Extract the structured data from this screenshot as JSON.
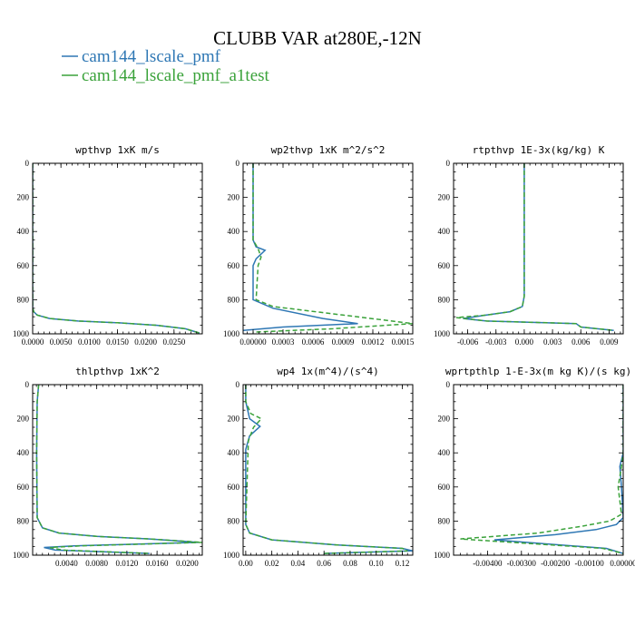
{
  "figure": {
    "title": "CLUBB VAR at280E,-12N"
  },
  "colors": {
    "series1": "#2e77b4",
    "series2": "#3aa23a"
  },
  "legend": [
    {
      "label": "cam144_lscale_pmf",
      "color": "#2e77b4",
      "dash": "solid"
    },
    {
      "label": "cam144_lscale_pmf_a1test",
      "color": "#3aa23a",
      "dash": "dashed"
    }
  ],
  "chart_data": [
    {
      "type": "line",
      "title": "wpthvp  1xK m/s",
      "xlim": [
        0,
        0.03
      ],
      "ylim": [
        0,
        1000
      ],
      "y_inverted": true,
      "xticks": [
        "0.0000",
        "0.0050",
        "0.0100",
        "0.0150",
        "0.0200",
        "0.0250"
      ],
      "xtick_values": [
        0,
        0.005,
        0.01,
        0.015,
        0.02,
        0.025
      ],
      "yticks": [
        "0",
        "200",
        "400",
        "600",
        "800",
        "1000"
      ],
      "ytick_values": [
        0,
        200,
        400,
        600,
        800,
        1000
      ],
      "series": [
        {
          "x": [
            0,
            0,
            0,
            0.0002,
            0.0008,
            0.003,
            0.008,
            0.015,
            0.022,
            0.027,
            0.0295
          ],
          "y": [
            0,
            400,
            850,
            870,
            890,
            910,
            925,
            935,
            950,
            970,
            995
          ]
        },
        {
          "x": [
            0,
            0,
            0,
            0.0002,
            0.0008,
            0.003,
            0.008,
            0.015,
            0.022,
            0.027,
            0.0295
          ],
          "y": [
            0,
            400,
            850,
            870,
            890,
            910,
            925,
            935,
            950,
            970,
            995
          ]
        }
      ]
    },
    {
      "type": "line",
      "title": "wp2thvp  1xK m^2/s^2",
      "xlim": [
        -0.0001,
        0.0016
      ],
      "ylim": [
        0,
        1000
      ],
      "y_inverted": true,
      "xticks": [
        "0.00000",
        "0.0003",
        "0.0006",
        "0.0009",
        "0.0012",
        "0.0015"
      ],
      "xtick_values": [
        0,
        0.0003,
        0.0006,
        0.0009,
        0.0012,
        0.0015
      ],
      "yticks": [
        "0",
        "200",
        "400",
        "600",
        "800",
        "1000"
      ],
      "ytick_values": [
        0,
        200,
        400,
        600,
        800,
        1000
      ],
      "series": [
        {
          "x": [
            0,
            0,
            3e-05,
            0.00012,
            3e-05,
            0,
            0,
            0.0002,
            0.0007,
            0.00105,
            0.0003,
            -0.0001
          ],
          "y": [
            0,
            450,
            490,
            510,
            560,
            600,
            800,
            850,
            910,
            940,
            960,
            980
          ]
        },
        {
          "x": [
            0,
            0,
            5e-05,
            8e-05,
            5e-05,
            3e-05,
            0.0002,
            0.0009,
            0.0016,
            0.0008,
            0
          ],
          "y": [
            0,
            450,
            500,
            550,
            600,
            800,
            840,
            890,
            940,
            970,
            990
          ]
        }
      ]
    },
    {
      "type": "line",
      "title": "rtpthvp  1E-3x(kg/kg) K",
      "xlim": [
        -0.0075,
        0.0105
      ],
      "ylim": [
        0,
        1000
      ],
      "y_inverted": true,
      "xticks": [
        "-0.006",
        "-0.003",
        "0.000",
        "0.003",
        "0.006",
        "0.009"
      ],
      "xtick_values": [
        -0.006,
        -0.003,
        0,
        0.003,
        0.006,
        0.009
      ],
      "yticks": [
        "0",
        "200",
        "400",
        "600",
        "800",
        "1000"
      ],
      "ytick_values": [
        0,
        200,
        400,
        600,
        800,
        1000
      ],
      "series": [
        {
          "x": [
            0,
            0,
            -0.0002,
            -0.0015,
            -0.004,
            -0.0065,
            -0.004,
            0.0055,
            0.006,
            0.0095
          ],
          "y": [
            0,
            780,
            840,
            870,
            890,
            910,
            925,
            940,
            960,
            980
          ]
        },
        {
          "x": [
            0,
            0,
            -0.0002,
            -0.0015,
            -0.004,
            -0.0072,
            -0.004,
            0.0055,
            0.006,
            0.0095
          ],
          "y": [
            0,
            780,
            840,
            870,
            890,
            905,
            925,
            940,
            960,
            980
          ]
        }
      ]
    },
    {
      "type": "line",
      "title": "thlpthvp  1xK^2",
      "xlim": [
        -0.0005,
        0.022
      ],
      "ylim": [
        0,
        1000
      ],
      "y_inverted": true,
      "xticks": [
        "0.0040",
        "0.0080",
        "0.0120",
        "0.0160",
        "0.0200"
      ],
      "xtick_values": [
        0.004,
        0.008,
        0.012,
        0.016,
        0.02
      ],
      "yticks": [
        "0",
        "200",
        "400",
        "600",
        "800",
        "1000"
      ],
      "ytick_values": [
        0,
        200,
        400,
        600,
        800,
        1000
      ],
      "series": [
        {
          "x": [
            0.0003,
            0.0001,
            3e-05,
            0.0001,
            0.0008,
            0.003,
            0.008,
            0.015,
            0.0215,
            0.005,
            0.001,
            0.0025,
            0.015
          ],
          "y": [
            0,
            100,
            400,
            780,
            840,
            870,
            890,
            905,
            925,
            945,
            955,
            970,
            990
          ]
        },
        {
          "x": [
            0.0003,
            0.0001,
            3e-05,
            0.0001,
            0.0008,
            0.003,
            0.008,
            0.015,
            0.022,
            0.006,
            0.0018,
            0.0035,
            0.015
          ],
          "y": [
            0,
            100,
            400,
            780,
            840,
            870,
            890,
            905,
            925,
            945,
            955,
            970,
            990
          ]
        }
      ]
    },
    {
      "type": "line",
      "title": "wp4  1x(m^4)/(s^4)",
      "xlim": [
        -0.002,
        0.128
      ],
      "ylim": [
        0,
        1000
      ],
      "y_inverted": true,
      "xticks": [
        "0.00",
        "0.02",
        "0.04",
        "0.06",
        "0.08",
        "0.10",
        "0.12"
      ],
      "xtick_values": [
        0,
        0.02,
        0.04,
        0.06,
        0.08,
        0.1,
        0.12
      ],
      "yticks": [
        "0",
        "200",
        "400",
        "600",
        "800",
        "1000"
      ],
      "ytick_values": [
        0,
        200,
        400,
        600,
        800,
        1000
      ],
      "series": [
        {
          "x": [
            0,
            0,
            0.003,
            0.011,
            0.003,
            0,
            0,
            0.003,
            0.02,
            0.07,
            0.12,
            0.128,
            0.06
          ],
          "y": [
            0,
            100,
            200,
            245,
            300,
            380,
            820,
            870,
            910,
            940,
            960,
            975,
            990
          ]
        },
        {
          "x": [
            0,
            0,
            0.004,
            0.012,
            0.006,
            0.002,
            0,
            0.003,
            0.02,
            0.07,
            0.12,
            0.124,
            0.06
          ],
          "y": [
            0,
            100,
            170,
            200,
            250,
            330,
            820,
            870,
            910,
            940,
            960,
            975,
            990
          ]
        }
      ]
    },
    {
      "type": "line",
      "title": "wprtpthlp  1-E-3x(m kg K)/(s kg)",
      "xlim": [
        -0.005,
        0
      ],
      "ylim": [
        0,
        1000
      ],
      "y_inverted": true,
      "xticks": [
        "-0.00400",
        "-0.00300",
        "-0.00200",
        "-0.00100",
        "0.00000"
      ],
      "xtick_values": [
        -0.004,
        -0.003,
        -0.002,
        -0.001,
        0
      ],
      "yticks": [
        "0",
        "200",
        "400",
        "600",
        "800",
        "1000"
      ],
      "ytick_values": [
        0,
        200,
        400,
        600,
        800,
        1000
      ],
      "series": [
        {
          "x": [
            0,
            0,
            -0.0001,
            -5e-05,
            0,
            -0.0002,
            -0.0008,
            -0.002,
            -0.0038,
            -0.0022,
            -0.0005,
            0
          ],
          "y": [
            0,
            400,
            480,
            600,
            780,
            820,
            850,
            880,
            910,
            935,
            960,
            990
          ]
        },
        {
          "x": [
            0,
            0,
            -5e-05,
            -0.00015,
            -5e-05,
            -0.0004,
            -0.0012,
            -0.0025,
            -0.0048,
            -0.0025,
            -0.0006,
            0
          ],
          "y": [
            0,
            400,
            480,
            600,
            760,
            800,
            830,
            870,
            905,
            935,
            960,
            990
          ]
        }
      ]
    }
  ]
}
